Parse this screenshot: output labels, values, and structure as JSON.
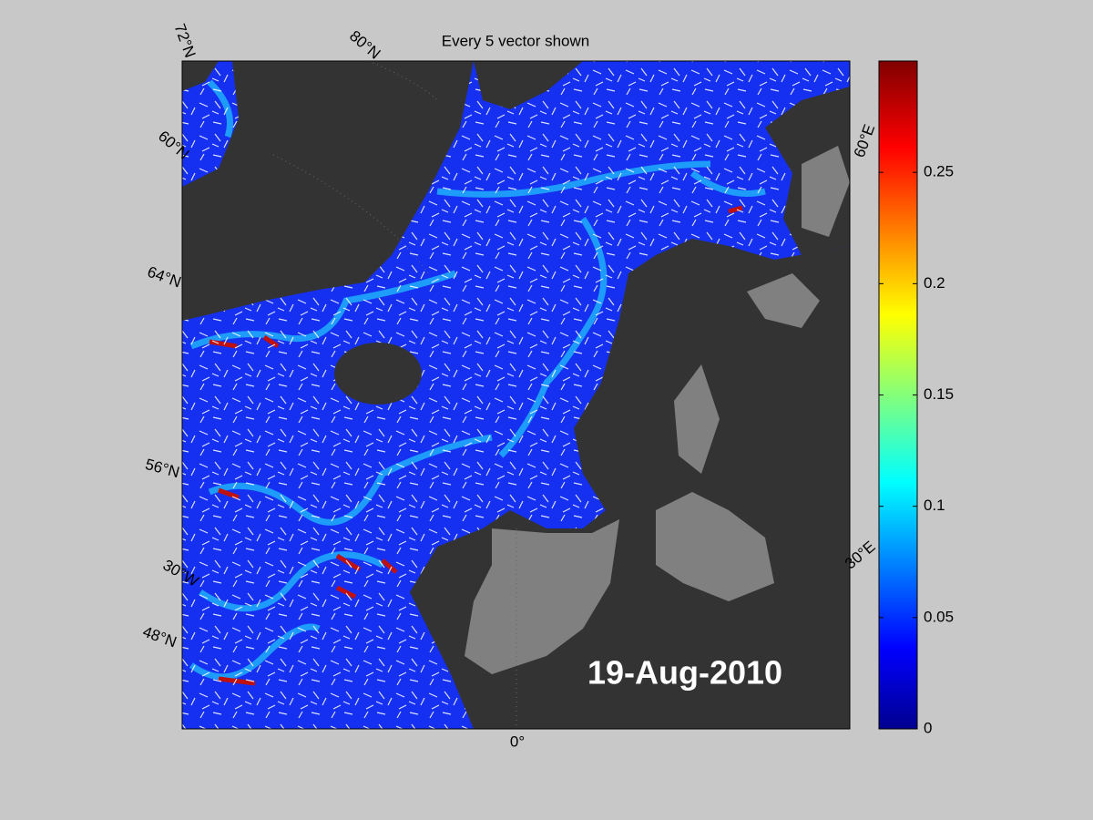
{
  "title": "Every 5 vector shown",
  "date": "19-Aug-2010",
  "map_labels": [
    "72°N",
    "80°N",
    "60°N",
    "64°N",
    "56°N",
    "30°W",
    "48°N",
    "0°",
    "30°E",
    "60°E"
  ],
  "colorbar": {
    "lim": [
      0,
      0.3
    ],
    "ticks": [
      0,
      0.05,
      0.1,
      0.15,
      0.2,
      0.25
    ]
  }
}
